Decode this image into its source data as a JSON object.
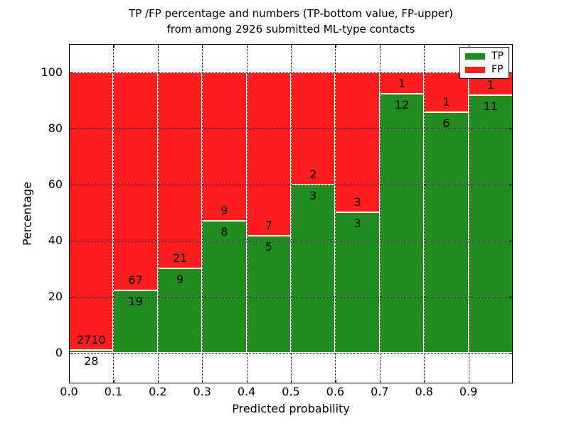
{
  "title": {
    "line1": "TP /FP percentage and numbers (TP-bottom value, FP-upper)",
    "line2": "from among 2926 submitted ML-type contacts"
  },
  "chart_data": {
    "type": "bar",
    "subtype": "stacked-percentage",
    "title": "TP /FP percentage and numbers (TP-bottom value, FP-upper) from among 2926 submitted ML-type contacts",
    "xlabel": "Predicted probability",
    "ylabel": "Percentage",
    "xlim": [
      0.0,
      1.0
    ],
    "ylim": [
      -11,
      110
    ],
    "grid": true,
    "grid_style": "dotted",
    "legend_position": "upper right",
    "total_contacts": 2926,
    "bin_width": 0.1,
    "bin_starts": [
      0.0,
      0.1,
      0.2,
      0.3,
      0.4,
      0.5,
      0.6,
      0.7,
      0.8,
      0.9
    ],
    "x_tick_values": [
      0.0,
      0.1,
      0.2,
      0.3,
      0.4,
      0.5,
      0.6,
      0.7,
      0.8,
      0.9
    ],
    "x_tick_labels": [
      "0.0",
      "0.1",
      "0.2",
      "0.3",
      "0.4",
      "0.5",
      "0.6",
      "0.7",
      "0.8",
      "0.9"
    ],
    "y_tick_values": [
      0,
      20,
      40,
      60,
      80,
      100
    ],
    "y_tick_labels": [
      "0",
      "20",
      "40",
      "60",
      "80",
      "100"
    ],
    "bar_edge_color": "#FFFFFF",
    "series": [
      {
        "name": "TP",
        "color": "#228B22",
        "counts": [
          28,
          19,
          9,
          8,
          5,
          3,
          3,
          12,
          6,
          11
        ],
        "pct": [
          1.02,
          22.09,
          30.0,
          47.06,
          41.67,
          60.0,
          50.0,
          92.31,
          85.71,
          91.67
        ]
      },
      {
        "name": "FP",
        "color": "#FF1E1E",
        "counts": [
          2710,
          67,
          21,
          9,
          7,
          2,
          3,
          1,
          1,
          1
        ],
        "pct": [
          98.98,
          77.91,
          70.0,
          52.94,
          58.33,
          40.0,
          50.0,
          7.69,
          14.29,
          8.33
        ]
      }
    ],
    "legend_entries": [
      "TP",
      "FP"
    ]
  }
}
